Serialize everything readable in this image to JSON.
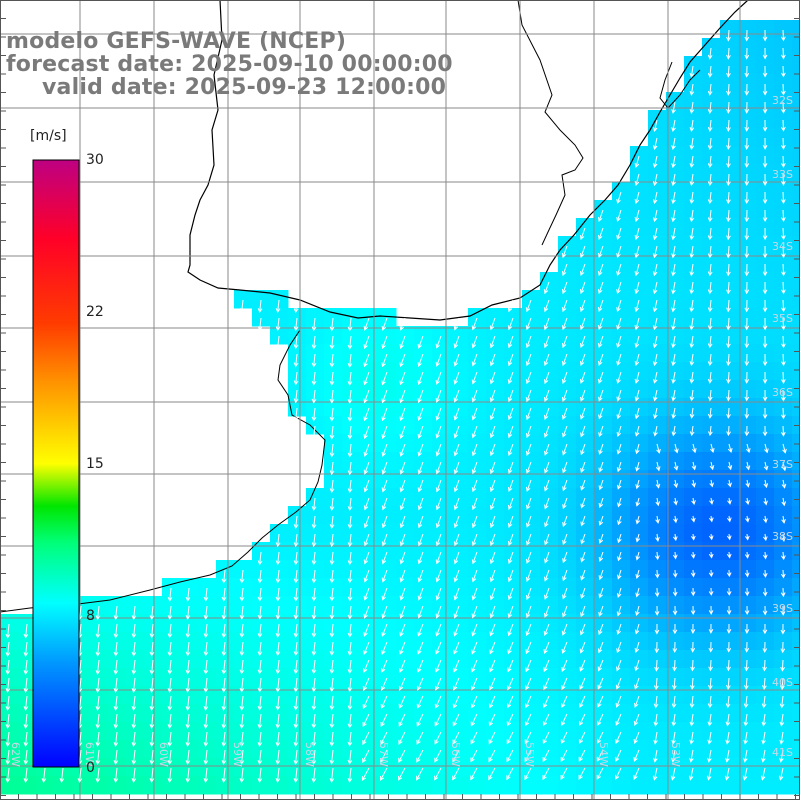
{
  "title": {
    "line1": "modelo GEFS-WAVE (NCEP)",
    "line2": "forecast date: 2025-09-10 00:00:00",
    "line3": "valid date: 2025-09-23 12:00:00"
  },
  "colorbar": {
    "unit": "[m/s]",
    "ticks": [
      "30",
      "22",
      "15",
      "8",
      "0"
    ],
    "tick_values": [
      30,
      22,
      15,
      8,
      0
    ],
    "colors": [
      "#0000ff",
      "#00c0ff",
      "#00ffff",
      "#00ff00",
      "#00c000",
      "#ffff00",
      "#ff8000",
      "#ff0000",
      "#c00080"
    ]
  },
  "map": {
    "lat_labels": [
      "32S",
      "33S",
      "34S",
      "35S",
      "36S",
      "37S",
      "38S",
      "39S",
      "40S",
      "41S"
    ],
    "lon_labels": [
      "62W",
      "61W",
      "60W",
      "59W",
      "58W",
      "57W",
      "56W",
      "55W",
      "54W",
      "53W"
    ],
    "lat_range": [
      -41.5,
      -31.0
    ],
    "lon_range": [
      -63.0,
      -52.0
    ],
    "field_range_ms": [
      0,
      30
    ]
  }
}
